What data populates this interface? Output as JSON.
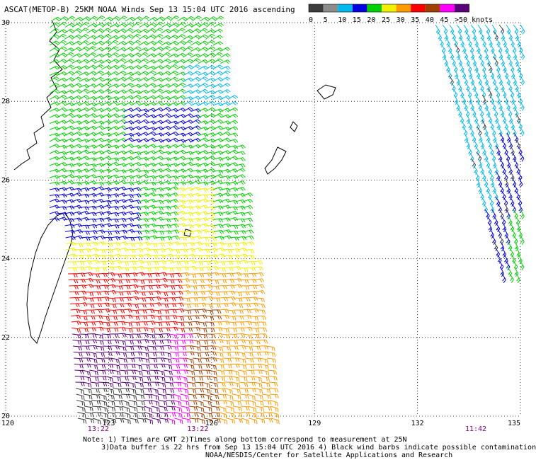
{
  "header": {
    "title": "ASCAT(METOP-B) 25KM NOAA Winds Sep 13 15:04 UTC 2016 ascending"
  },
  "legend": {
    "labels": [
      "0",
      "5",
      "10",
      "15",
      "20",
      "25",
      "30",
      "35",
      "40",
      "45",
      ">50 knots"
    ],
    "colors": [
      "#3c3c3c",
      "#8c8c8c",
      "#00b8f0",
      "#0000e0",
      "#00d000",
      "#f0f000",
      "#ff9a00",
      "#ff0000",
      "#a04000",
      "#ff00ff",
      "#5a007a"
    ]
  },
  "map": {
    "lon_range": [
      120,
      135
    ],
    "lat_range": [
      20,
      30
    ],
    "lat_labels": [
      "30",
      "28",
      "26",
      "24",
      "22",
      "20"
    ],
    "lon_labels": [
      "120",
      "123",
      "126",
      "129",
      "132",
      "135"
    ],
    "time_labels": [
      "13:22",
      "13:22",
      "11:42"
    ],
    "time_color": "#800080"
  },
  "footer": {
    "line1": "Note: 1) Times are GMT 2)Times along bottom correspond to measurement at 25N",
    "line2": "3)Data buffer is 22 hrs from Sep 13 15:04 UTC 2016 4) Black wind barbs indicate possible contamination",
    "line3": "NOAA/NESDIS/Center for Satellite Applications and Research"
  }
}
